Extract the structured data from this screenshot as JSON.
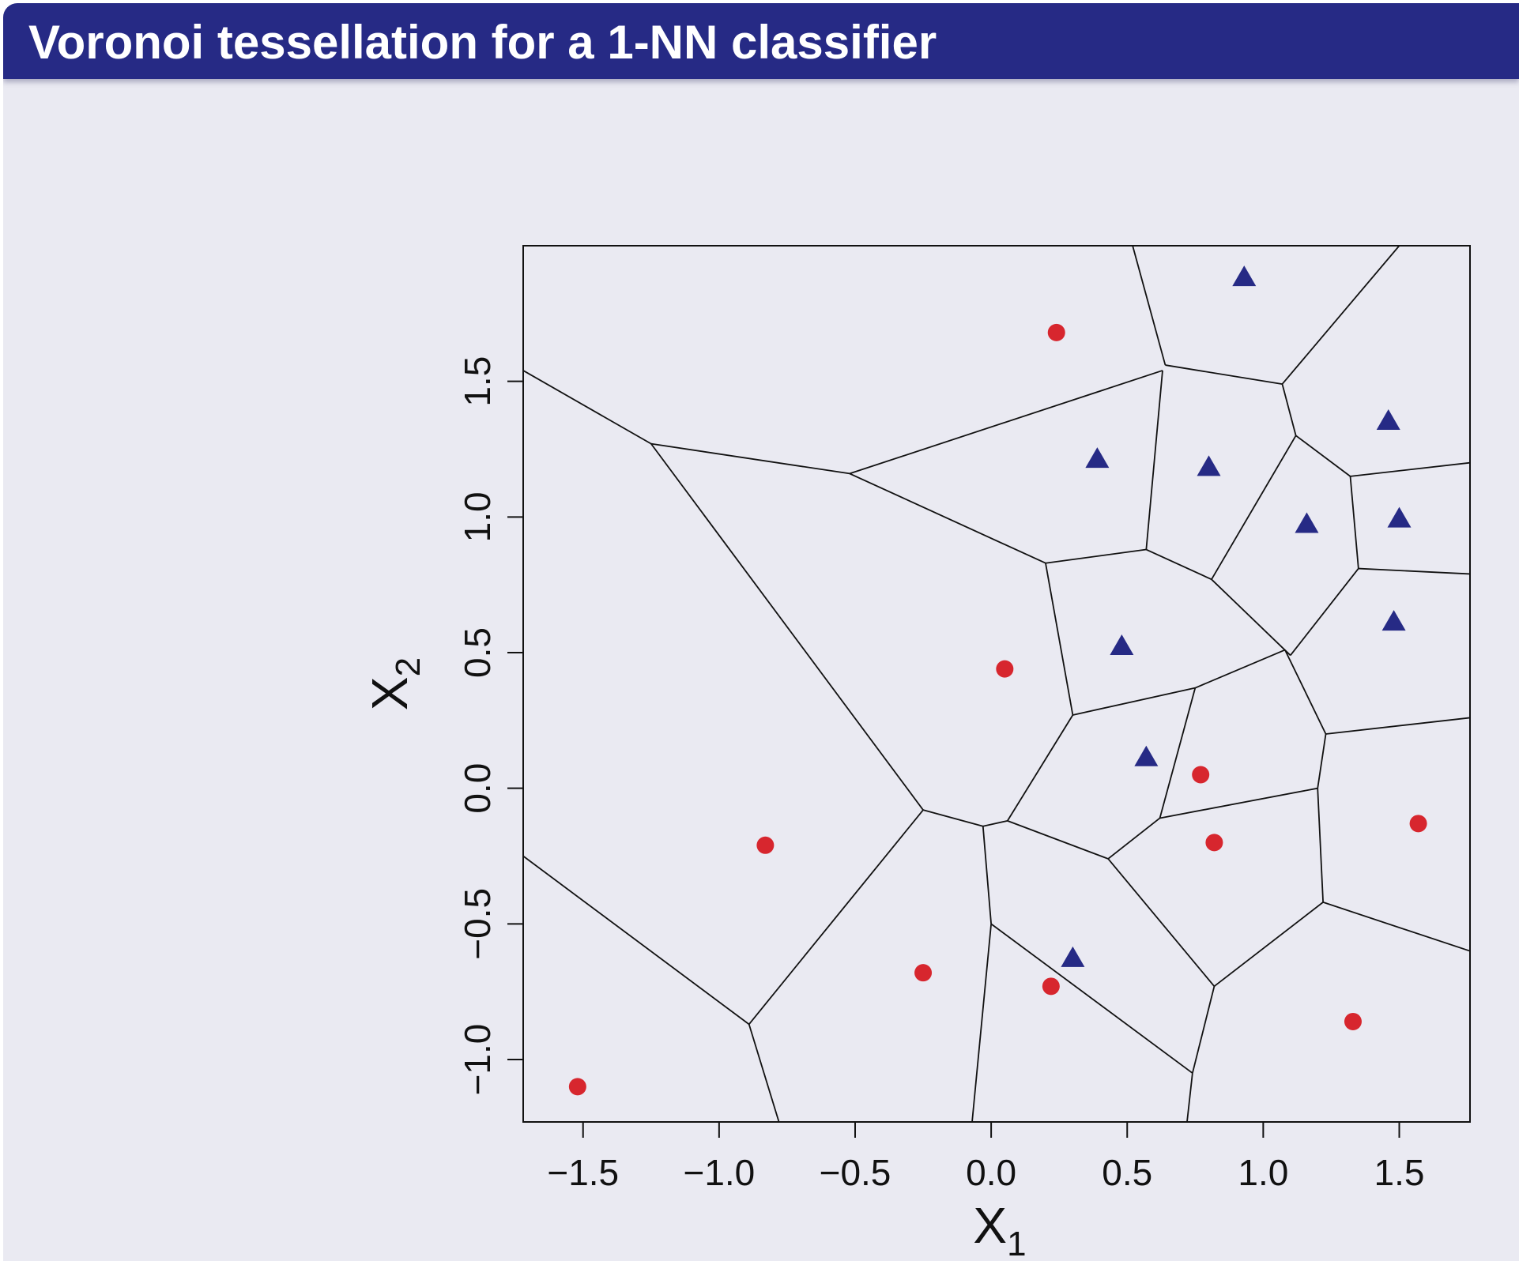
{
  "header": {
    "title": "Voronoi tessellation for a 1-NN classifier"
  },
  "colors": {
    "header_bg": "#262a85",
    "class_circle": "#d7262e",
    "class_triangle": "#262a85",
    "panel_bg": "#eaeaf2"
  },
  "chart_data": {
    "type": "scatter",
    "title": "Voronoi tessellation for a 1-NN classifier",
    "xlabel": "X",
    "xlabel_sub": "1",
    "ylabel": "X",
    "ylabel_sub": "2",
    "xlim": [
      -1.72,
      1.76
    ],
    "ylim": [
      -1.23,
      2.0
    ],
    "xticks": [
      -1.5,
      -1.0,
      -0.5,
      0.0,
      0.5,
      1.0,
      1.5
    ],
    "xtick_labels": [
      "−1.5",
      "−1.0",
      "−0.5",
      "0.0",
      "0.5",
      "1.0",
      "1.5"
    ],
    "yticks": [
      -1.0,
      -0.5,
      0.0,
      0.5,
      1.0,
      1.5
    ],
    "ytick_labels": [
      "−1.0",
      "−0.5",
      "0.0",
      "0.5",
      "1.0",
      "1.5"
    ],
    "grid": false,
    "series": [
      {
        "marker": "circle",
        "points": [
          [
            0.24,
            1.68
          ],
          [
            0.05,
            0.44
          ],
          [
            -0.83,
            -0.21
          ],
          [
            -1.52,
            -1.1
          ],
          [
            -0.25,
            -0.68
          ],
          [
            0.22,
            -0.73
          ],
          [
            0.77,
            0.05
          ],
          [
            0.82,
            -0.2
          ],
          [
            1.57,
            -0.13
          ],
          [
            1.33,
            -0.86
          ]
        ]
      },
      {
        "marker": "triangle",
        "points": [
          [
            0.93,
            1.88
          ],
          [
            0.39,
            1.21
          ],
          [
            0.8,
            1.18
          ],
          [
            1.46,
            1.35
          ],
          [
            1.16,
            0.97
          ],
          [
            1.5,
            0.99
          ],
          [
            0.48,
            0.52
          ],
          [
            1.48,
            0.61
          ],
          [
            0.57,
            0.11
          ],
          [
            0.3,
            -0.63
          ]
        ]
      }
    ],
    "voronoi_edges": [
      [
        [
          0.52,
          2.0
        ],
        [
          0.64,
          1.56
        ]
      ],
      [
        [
          0.64,
          1.56
        ],
        [
          1.07,
          1.49
        ]
      ],
      [
        [
          1.07,
          1.49
        ],
        [
          1.5,
          2.0
        ]
      ],
      [
        [
          1.07,
          1.49
        ],
        [
          1.12,
          1.3
        ]
      ],
      [
        [
          1.12,
          1.3
        ],
        [
          1.32,
          1.15
        ]
      ],
      [
        [
          1.32,
          1.15
        ],
        [
          1.76,
          1.2
        ]
      ],
      [
        [
          1.32,
          1.15
        ],
        [
          1.35,
          0.81
        ]
      ],
      [
        [
          1.35,
          0.81
        ],
        [
          1.76,
          0.79
        ]
      ],
      [
        [
          1.35,
          0.81
        ],
        [
          1.1,
          0.49
        ]
      ],
      [
        [
          1.12,
          1.3
        ],
        [
          0.81,
          0.77
        ]
      ],
      [
        [
          0.81,
          0.77
        ],
        [
          1.1,
          0.49
        ]
      ],
      [
        [
          0.81,
          0.77
        ],
        [
          0.57,
          0.88
        ]
      ],
      [
        [
          0.57,
          0.88
        ],
        [
          0.63,
          1.54
        ]
      ],
      [
        [
          0.63,
          1.54
        ],
        [
          -0.52,
          1.16
        ]
      ],
      [
        [
          -0.52,
          1.16
        ],
        [
          -1.25,
          1.27
        ]
      ],
      [
        [
          -1.25,
          1.27
        ],
        [
          -1.72,
          1.54
        ]
      ],
      [
        [
          -0.52,
          1.16
        ],
        [
          0.2,
          0.83
        ]
      ],
      [
        [
          0.2,
          0.83
        ],
        [
          0.57,
          0.88
        ]
      ],
      [
        [
          0.2,
          0.83
        ],
        [
          0.3,
          0.27
        ]
      ],
      [
        [
          0.3,
          0.27
        ],
        [
          0.75,
          0.37
        ]
      ],
      [
        [
          0.75,
          0.37
        ],
        [
          1.08,
          0.51
        ]
      ],
      [
        [
          1.08,
          0.51
        ],
        [
          1.23,
          0.2
        ]
      ],
      [
        [
          1.23,
          0.2
        ],
        [
          1.76,
          0.26
        ]
      ],
      [
        [
          1.23,
          0.2
        ],
        [
          1.2,
          0.0
        ]
      ],
      [
        [
          1.2,
          0.0
        ],
        [
          0.62,
          -0.11
        ]
      ],
      [
        [
          0.62,
          -0.11
        ],
        [
          0.75,
          0.37
        ]
      ],
      [
        [
          0.62,
          -0.11
        ],
        [
          0.43,
          -0.26
        ]
      ],
      [
        [
          0.43,
          -0.26
        ],
        [
          0.06,
          -0.12
        ]
      ],
      [
        [
          0.06,
          -0.12
        ],
        [
          0.3,
          0.27
        ]
      ],
      [
        [
          0.06,
          -0.12
        ],
        [
          -0.03,
          -0.14
        ]
      ],
      [
        [
          -0.03,
          -0.14
        ],
        [
          -0.25,
          -0.08
        ]
      ],
      [
        [
          -0.25,
          -0.08
        ],
        [
          -1.25,
          1.27
        ]
      ],
      [
        [
          -0.25,
          -0.08
        ],
        [
          -0.89,
          -0.87
        ]
      ],
      [
        [
          -0.89,
          -0.87
        ],
        [
          -1.72,
          -0.25
        ]
      ],
      [
        [
          -0.89,
          -0.87
        ],
        [
          -0.78,
          -1.23
        ]
      ],
      [
        [
          -0.03,
          -0.14
        ],
        [
          0.0,
          -0.5
        ]
      ],
      [
        [
          0.0,
          -0.5
        ],
        [
          -0.07,
          -1.23
        ]
      ],
      [
        [
          0.0,
          -0.5
        ],
        [
          0.74,
          -1.05
        ]
      ],
      [
        [
          0.74,
          -1.05
        ],
        [
          0.72,
          -1.23
        ]
      ],
      [
        [
          0.74,
          -1.05
        ],
        [
          0.82,
          -0.73
        ]
      ],
      [
        [
          0.82,
          -0.73
        ],
        [
          0.43,
          -0.26
        ]
      ],
      [
        [
          0.82,
          -0.73
        ],
        [
          1.22,
          -0.42
        ]
      ],
      [
        [
          1.22,
          -0.42
        ],
        [
          1.2,
          0.0
        ]
      ],
      [
        [
          1.22,
          -0.42
        ],
        [
          1.76,
          -0.6
        ]
      ]
    ]
  }
}
